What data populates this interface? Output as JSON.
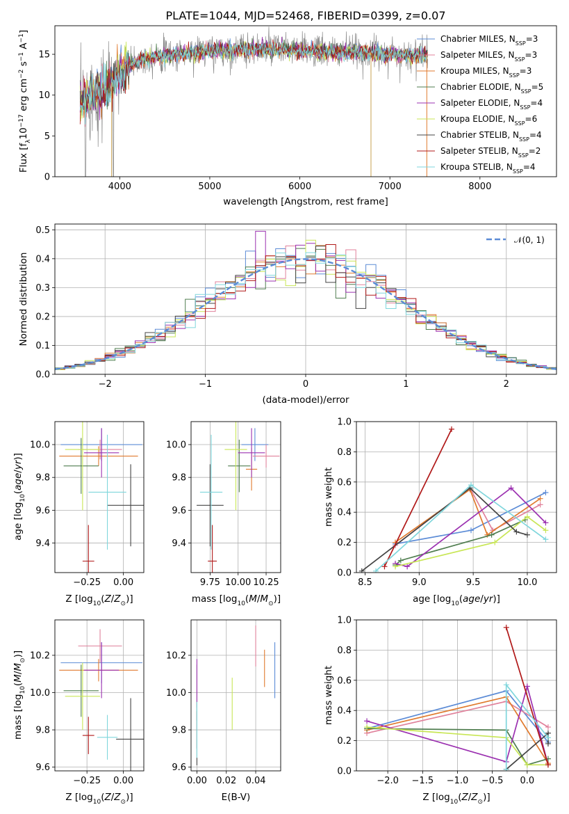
{
  "figure": {
    "title": "PLATE=1044, MJD=52468, FIBERID=0399, z=0.07"
  },
  "colors": {
    "Chabrier MILES": "#5b8bd6",
    "Salpeter MILES": "#e0819b",
    "Kroupa MILES": "#e07a2e",
    "Chabrier ELODIE": "#4f7d4f",
    "Salpeter ELODIE": "#9b30b0",
    "Kroupa ELODIE": "#c8e655",
    "Chabrier STELIB": "#444444",
    "Salpeter STELIB": "#b01818",
    "Kroupa STELIB": "#7fd6dc",
    "data": "#888888",
    "normal": "#5b8bd6"
  },
  "chart_data": [
    {
      "id": "spectrum",
      "type": "line",
      "xlabel": "wavelength [Angstrom, rest frame]",
      "ylabel": "Flux [f_λ 10^-17 erg cm^-2 s^-1 A^-1]",
      "xlim": [
        3280,
        8850
      ],
      "ylim": [
        0,
        18.5
      ],
      "xticks": [
        4000,
        5000,
        6000,
        7000,
        8000
      ],
      "yticks": [
        0,
        5,
        10,
        15
      ],
      "grid": false,
      "legend_position": "top-right",
      "continuum": {
        "x": [
          3560,
          3650,
          3750,
          3850,
          3950,
          4050,
          4200,
          4400,
          4600,
          4800,
          5000,
          5200,
          5400,
          5600,
          5800,
          6000,
          6200,
          6400,
          6600,
          6800,
          7000,
          7200,
          7400
        ],
        "y": [
          9.0,
          10.0,
          10.5,
          10.8,
          12.0,
          13.3,
          14.3,
          14.8,
          15.0,
          15.2,
          15.5,
          15.5,
          15.6,
          15.7,
          15.6,
          15.5,
          15.4,
          15.3,
          15.3,
          15.2,
          15.0,
          14.9,
          14.9
        ]
      },
      "series": [
        {
          "name": "Chabrier MILES, N_SSP=3",
          "label_main": "Chabrier MILES, N",
          "label_sub": "SSP",
          "label_tail": "=3"
        },
        {
          "name": "Salpeter MILES, N_SSP=3",
          "label_main": "Salpeter MILES, N",
          "label_sub": "SSP",
          "label_tail": "=3"
        },
        {
          "name": "Kroupa MILES, N_SSP=3",
          "label_main": "Kroupa MILES, N",
          "label_sub": "SSP",
          "label_tail": "=3"
        },
        {
          "name": "Chabrier ELODIE, N_SSP=5",
          "label_main": "Chabrier ELODIE, N",
          "label_sub": "SSP",
          "label_tail": "=5"
        },
        {
          "name": "Salpeter ELODIE, N_SSP=4",
          "label_main": "Salpeter ELODIE, N",
          "label_sub": "SSP",
          "label_tail": "=4"
        },
        {
          "name": "Kroupa ELODIE, N_SSP=6",
          "label_main": "Kroupa ELODIE, N",
          "label_sub": "SSP",
          "label_tail": "=6"
        },
        {
          "name": "Chabrier STELIB, N_SSP=4",
          "label_main": "Chabrier STELIB, N",
          "label_sub": "SSP",
          "label_tail": "=4"
        },
        {
          "name": "Salpeter STELIB, N_SSP=2",
          "label_main": "Salpeter STELIB, N",
          "label_sub": "SSP",
          "label_tail": "=2"
        },
        {
          "name": "Kroupa STELIB, N_SSP=4",
          "label_main": "Kroupa STELIB, N",
          "label_sub": "SSP",
          "label_tail": "=4"
        }
      ]
    },
    {
      "id": "residuals",
      "type": "histogram",
      "xlabel": "(data-model)/error",
      "ylabel": "Normed distribution",
      "xlim": [
        -2.5,
        2.5
      ],
      "ylim": [
        0,
        0.52
      ],
      "xticks": [
        -2,
        -1,
        0,
        1,
        2
      ],
      "yticks": [
        0.0,
        0.1,
        0.2,
        0.3,
        0.4,
        0.5
      ],
      "grid": true,
      "legend_position": "top-right",
      "legend_label": "𝒩(0, 1)",
      "bin_width": 0.1
    },
    {
      "id": "age-vs-Z",
      "type": "errorbar",
      "xlabel": "Z [log10(Z/Z⊙)]",
      "ylabel": "age [log10(age/yr)]",
      "xlim": [
        -0.47,
        0.14
      ],
      "ylim": [
        9.22,
        10.14
      ],
      "xticks": [
        -0.25,
        0.0
      ],
      "yticks": [
        9.4,
        9.6,
        9.8,
        10.0
      ],
      "grid": true,
      "points": [
        {
          "model": "Chabrier MILES",
          "x": -0.15,
          "y": 10.0,
          "xerr": 0.28,
          "yerr": 0.1
        },
        {
          "model": "Salpeter MILES",
          "x": -0.16,
          "y": 9.97,
          "xerr": 0.15,
          "yerr": 0.06
        },
        {
          "model": "Kroupa MILES",
          "x": -0.17,
          "y": 9.93,
          "xerr": 0.27,
          "yerr": 0.06
        },
        {
          "model": "Chabrier ELODIE",
          "x": -0.29,
          "y": 9.87,
          "xerr": 0.12,
          "yerr": 0.17
        },
        {
          "model": "Salpeter ELODIE",
          "x": -0.15,
          "y": 9.95,
          "xerr": 0.12,
          "yerr": 0.15
        },
        {
          "model": "Kroupa ELODIE",
          "x": -0.28,
          "y": 9.97,
          "xerr": 0.12,
          "yerr": 0.37
        },
        {
          "model": "Chabrier STELIB",
          "x": 0.05,
          "y": 9.63,
          "xerr": 0.16,
          "yerr": 0.25
        },
        {
          "model": "Salpeter STELIB",
          "x": -0.24,
          "y": 9.29,
          "xerr": 0.04,
          "yerr": 0.22
        },
        {
          "model": "Kroupa STELIB",
          "x": -0.11,
          "y": 9.71,
          "xerr": 0.13,
          "yerr": 0.35
        }
      ]
    },
    {
      "id": "age-vs-mass",
      "type": "errorbar",
      "xlabel": "mass [log10(M/M⊙)]",
      "ylabel": "",
      "xlim": [
        9.58,
        10.38
      ],
      "ylim": [
        9.22,
        10.14
      ],
      "xticks": [
        9.75,
        10.0,
        10.25
      ],
      "yticks": [
        9.4,
        9.6,
        9.8,
        10.0
      ],
      "grid": true,
      "points": [
        {
          "model": "Chabrier MILES",
          "x": 10.15,
          "y": 10.0,
          "xerr": 0.12,
          "yerr": 0.1
        },
        {
          "model": "Salpeter MILES",
          "x": 10.25,
          "y": 9.93,
          "xerr": 0.12,
          "yerr": 0.07
        },
        {
          "model": "Kroupa MILES",
          "x": 10.12,
          "y": 9.85,
          "xerr": 0.05,
          "yerr": 0.13
        },
        {
          "model": "Chabrier ELODIE",
          "x": 10.01,
          "y": 9.87,
          "xerr": 0.1,
          "yerr": 0.16
        },
        {
          "model": "Salpeter ELODIE",
          "x": 10.12,
          "y": 9.95,
          "xerr": 0.12,
          "yerr": 0.15
        },
        {
          "model": "Kroupa ELODIE",
          "x": 9.98,
          "y": 9.97,
          "xerr": 0.1,
          "yerr": 0.37
        },
        {
          "model": "Chabrier STELIB",
          "x": 9.75,
          "y": 9.63,
          "xerr": 0.12,
          "yerr": 0.25
        },
        {
          "model": "Salpeter STELIB",
          "x": 9.77,
          "y": 9.29,
          "xerr": 0.04,
          "yerr": 0.22
        },
        {
          "model": "Kroupa STELIB",
          "x": 9.76,
          "y": 9.71,
          "xerr": 0.1,
          "yerr": 0.35
        }
      ]
    },
    {
      "id": "massweight-vs-age",
      "type": "line",
      "xlabel": "age [log10(age/yr)]",
      "ylabel": "mass weight",
      "xlim": [
        8.42,
        10.27
      ],
      "ylim": [
        0,
        1.0
      ],
      "xticks": [
        8.5,
        9.0,
        9.5,
        10.0
      ],
      "yticks": [
        0.0,
        0.2,
        0.4,
        0.6,
        0.8,
        1.0
      ],
      "grid": true,
      "series": [
        {
          "model": "Chabrier MILES",
          "x": [
            8.78,
            9.48,
            10.17
          ],
          "y": [
            0.19,
            0.28,
            0.53
          ]
        },
        {
          "model": "Salpeter MILES",
          "x": [
            8.78,
            9.47,
            9.68,
            10.12
          ],
          "y": [
            0.18,
            0.56,
            0.28,
            0.45
          ]
        },
        {
          "model": "Kroupa MILES",
          "x": [
            8.78,
            9.47,
            9.63,
            10.12
          ],
          "y": [
            0.2,
            0.55,
            0.25,
            0.49
          ]
        },
        {
          "model": "Chabrier ELODIE",
          "x": [
            8.78,
            8.83,
            9.67,
            9.98
          ],
          "y": [
            0.05,
            0.08,
            0.25,
            0.35
          ]
        },
        {
          "model": "Salpeter ELODIE",
          "x": [
            8.78,
            8.89,
            9.85,
            10.17
          ],
          "y": [
            0.06,
            0.04,
            0.56,
            0.33
          ]
        },
        {
          "model": "Kroupa ELODIE",
          "x": [
            8.78,
            9.7,
            10.0,
            10.17
          ],
          "y": [
            0.04,
            0.2,
            0.37,
            0.28
          ]
        },
        {
          "model": "Chabrier STELIB",
          "x": [
            8.47,
            9.47,
            9.9,
            10.0
          ],
          "y": [
            0.01,
            0.56,
            0.27,
            0.25
          ]
        },
        {
          "model": "Salpeter STELIB",
          "x": [
            8.68,
            9.3
          ],
          "y": [
            0.04,
            0.95
          ]
        },
        {
          "model": "Kroupa STELIB",
          "x": [
            8.6,
            9.48,
            10.17
          ],
          "y": [
            0.01,
            0.58,
            0.22
          ]
        }
      ]
    },
    {
      "id": "mass-vs-Z",
      "type": "errorbar",
      "xlabel": "Z [log10(Z/Z⊙)]",
      "ylabel": "mass [log10(M/M⊙)]",
      "xlim": [
        -0.47,
        0.14
      ],
      "ylim": [
        9.58,
        10.39
      ],
      "xticks": [
        -0.25,
        0.0
      ],
      "yticks": [
        9.6,
        9.8,
        10.0,
        10.2
      ],
      "grid": true,
      "points": [
        {
          "model": "Chabrier MILES",
          "x": -0.15,
          "y": 10.16,
          "xerr": 0.28,
          "yerr": 0.11
        },
        {
          "model": "Salpeter MILES",
          "x": -0.16,
          "y": 10.25,
          "xerr": 0.15,
          "yerr": 0.09
        },
        {
          "model": "Kroupa MILES",
          "x": -0.17,
          "y": 10.12,
          "xerr": 0.27,
          "yerr": 0.06
        },
        {
          "model": "Chabrier ELODIE",
          "x": -0.29,
          "y": 10.01,
          "xerr": 0.12,
          "yerr": 0.14
        },
        {
          "model": "Salpeter ELODIE",
          "x": -0.15,
          "y": 10.12,
          "xerr": 0.12,
          "yerr": 0.15
        },
        {
          "model": "Kroupa ELODIE",
          "x": -0.28,
          "y": 9.98,
          "xerr": 0.12,
          "yerr": 0.18
        },
        {
          "model": "Chabrier STELIB",
          "x": 0.05,
          "y": 9.75,
          "xerr": 0.1,
          "yerr": 0.22
        },
        {
          "model": "Salpeter STELIB",
          "x": -0.24,
          "y": 9.77,
          "xerr": 0.04,
          "yerr": 0.1
        },
        {
          "model": "Kroupa STELIB",
          "x": -0.11,
          "y": 9.76,
          "xerr": 0.07,
          "yerr": 0.12
        }
      ]
    },
    {
      "id": "mass-vs-EBV",
      "type": "errorbar",
      "xlabel": "E(B-V)",
      "ylabel": "",
      "xlim": [
        -0.004,
        0.057
      ],
      "ylim": [
        9.58,
        10.39
      ],
      "xticks": [
        0.0,
        0.02,
        0.04
      ],
      "yticks": [
        9.6,
        9.8,
        10.0,
        10.2
      ],
      "grid": true,
      "points": [
        {
          "model": "Chabrier MILES",
          "x": 0.053,
          "y": 10.12,
          "xerr": 0,
          "yerr": 0.15
        },
        {
          "model": "Salpeter MILES",
          "x": 0.04,
          "y": 10.25,
          "xerr": 0,
          "yerr": 0.11
        },
        {
          "model": "Kroupa MILES",
          "x": 0.046,
          "y": 10.13,
          "xerr": 0,
          "yerr": 0.1
        },
        {
          "model": "Chabrier ELODIE",
          "x": 0.0,
          "y": 10.0,
          "xerr": 0,
          "yerr": 0.15
        },
        {
          "model": "Salpeter ELODIE",
          "x": 0.0,
          "y": 10.05,
          "xerr": 0,
          "yerr": 0.13
        },
        {
          "model": "Kroupa ELODIE",
          "x": 0.024,
          "y": 9.94,
          "xerr": 0,
          "yerr": 0.14
        },
        {
          "model": "Chabrier STELIB",
          "x": 0.0,
          "y": 9.78,
          "xerr": 0,
          "yerr": 0.17
        },
        {
          "model": "Salpeter STELIB",
          "x": 0.0,
          "y": 9.8,
          "xerr": 0,
          "yerr": 0.1
        },
        {
          "model": "Kroupa STELIB",
          "x": 0.0,
          "y": 9.8,
          "xerr": 0,
          "yerr": 0.15
        }
      ]
    },
    {
      "id": "massweight-vs-Z",
      "type": "line",
      "xlabel": "Z [log10(Z/Z⊙)]",
      "ylabel": "mass weight",
      "xlim": [
        -2.45,
        0.42
      ],
      "ylim": [
        0,
        1.0
      ],
      "xticks": [
        -2.0,
        -1.5,
        -1.0,
        -0.5,
        0.0
      ],
      "yticks": [
        0.0,
        0.2,
        0.4,
        0.6,
        0.8,
        1.0
      ],
      "grid": true,
      "series": [
        {
          "model": "Chabrier MILES",
          "x": [
            -2.3,
            -0.3,
            0.3
          ],
          "y": [
            0.28,
            0.53,
            0.19
          ]
        },
        {
          "model": "Salpeter MILES",
          "x": [
            -2.3,
            -0.3,
            0.3
          ],
          "y": [
            0.25,
            0.46,
            0.29
          ]
        },
        {
          "model": "Kroupa MILES",
          "x": [
            -2.3,
            -0.3,
            0.3
          ],
          "y": [
            0.27,
            0.49,
            0.05
          ]
        },
        {
          "model": "Chabrier ELODIE",
          "x": [
            -2.3,
            -0.3,
            0.0,
            0.3
          ],
          "y": [
            0.28,
            0.27,
            0.04,
            0.08
          ]
        },
        {
          "model": "Salpeter ELODIE",
          "x": [
            -2.3,
            -0.3,
            0.0,
            0.3
          ],
          "y": [
            0.33,
            0.06,
            0.56,
            0.04
          ]
        },
        {
          "model": "Kroupa ELODIE",
          "x": [
            -2.3,
            -0.3,
            0.0,
            0.3
          ],
          "y": [
            0.29,
            0.22,
            0.04,
            0.04
          ]
        },
        {
          "model": "Chabrier STELIB",
          "x": [
            -0.3,
            0.3,
            0.3
          ],
          "y": [
            0.01,
            0.25,
            0.18
          ]
        },
        {
          "model": "Salpeter STELIB",
          "x": [
            -0.3,
            0.3
          ],
          "y": [
            0.95,
            0.04
          ]
        },
        {
          "model": "Kroupa STELIB",
          "x": [
            -0.3,
            -0.3,
            0.3
          ],
          "y": [
            0.01,
            0.57,
            0.22
          ]
        }
      ]
    }
  ]
}
